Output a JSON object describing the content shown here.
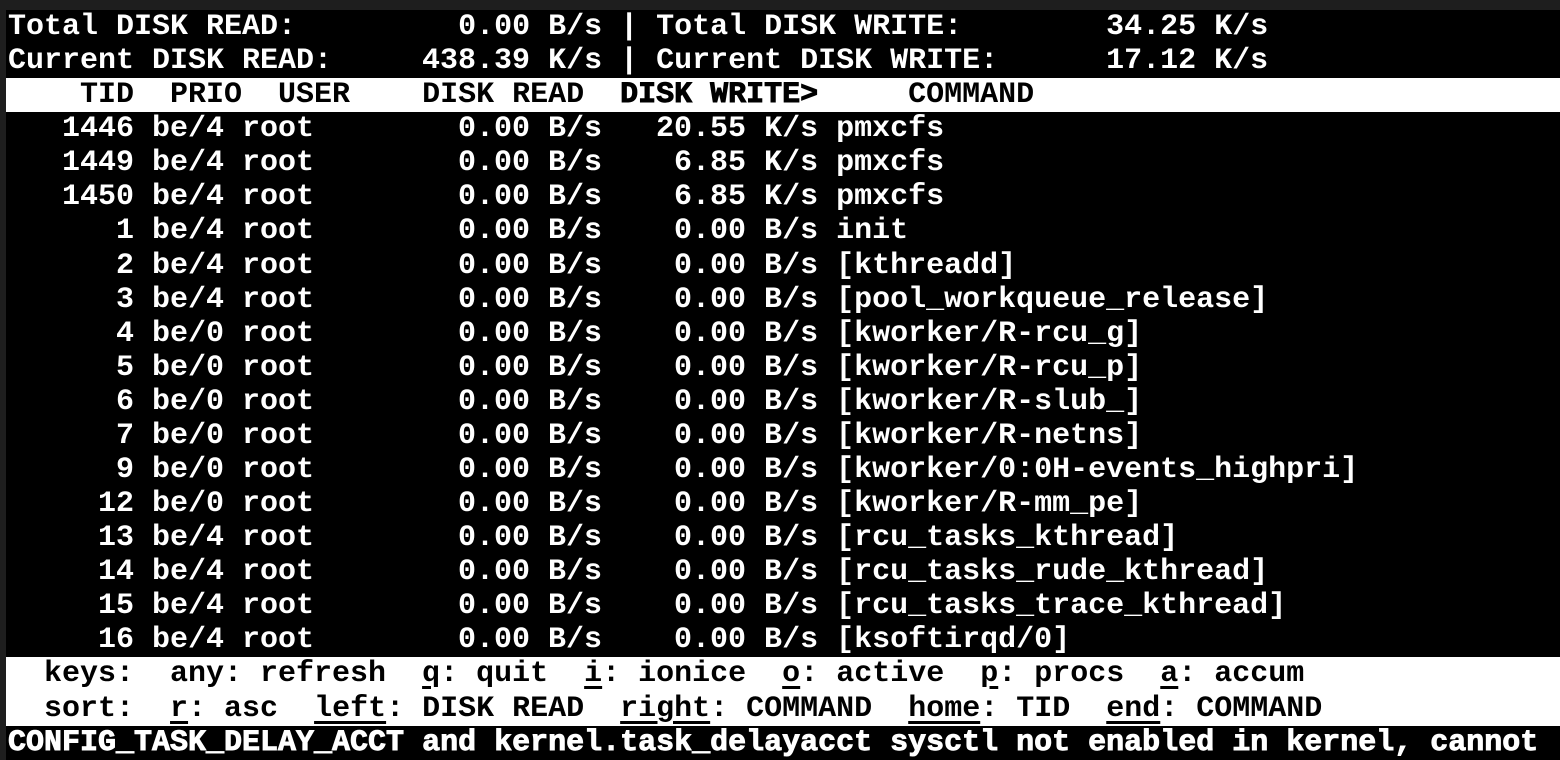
{
  "app": "iotop",
  "terminal": {
    "summary": {
      "total_read_label": "Total DISK READ:",
      "total_read_value": "0.00 B/s",
      "separator": " | ",
      "total_write_label": "Total DISK WRITE:",
      "total_write_value": "34.25 K/s",
      "current_read_label": "Current DISK READ:",
      "current_read_value": "438.39 K/s",
      "current_write_label": "Current DISK WRITE:",
      "current_write_value": "17.12 K/s"
    },
    "table": {
      "columns": [
        "TID",
        "PRIO",
        "USER",
        "DISK READ",
        "DISK WRITE",
        "COMMAND"
      ],
      "sort_column": "DISK WRITE",
      "sort_indicator": ">",
      "header": {
        "pre": "    TID  PRIO  USER    DISK READ  ",
        "sort": "DISK WRITE>",
        "post": "     COMMAND"
      },
      "rows": [
        {
          "tid": "1446",
          "prio": "be/4",
          "user": "root",
          "disk_read": "0.00 B/s",
          "disk_write": "20.55 K/s",
          "command": "pmxcfs"
        },
        {
          "tid": "1449",
          "prio": "be/4",
          "user": "root",
          "disk_read": "0.00 B/s",
          "disk_write": "6.85 K/s",
          "command": "pmxcfs"
        },
        {
          "tid": "1450",
          "prio": "be/4",
          "user": "root",
          "disk_read": "0.00 B/s",
          "disk_write": "6.85 K/s",
          "command": "pmxcfs"
        },
        {
          "tid": "1",
          "prio": "be/4",
          "user": "root",
          "disk_read": "0.00 B/s",
          "disk_write": "0.00 B/s",
          "command": "init"
        },
        {
          "tid": "2",
          "prio": "be/4",
          "user": "root",
          "disk_read": "0.00 B/s",
          "disk_write": "0.00 B/s",
          "command": "[kthreadd]"
        },
        {
          "tid": "3",
          "prio": "be/4",
          "user": "root",
          "disk_read": "0.00 B/s",
          "disk_write": "0.00 B/s",
          "command": "[pool_workqueue_release]"
        },
        {
          "tid": "4",
          "prio": "be/0",
          "user": "root",
          "disk_read": "0.00 B/s",
          "disk_write": "0.00 B/s",
          "command": "[kworker/R-rcu_g]"
        },
        {
          "tid": "5",
          "prio": "be/0",
          "user": "root",
          "disk_read": "0.00 B/s",
          "disk_write": "0.00 B/s",
          "command": "[kworker/R-rcu_p]"
        },
        {
          "tid": "6",
          "prio": "be/0",
          "user": "root",
          "disk_read": "0.00 B/s",
          "disk_write": "0.00 B/s",
          "command": "[kworker/R-slub_]"
        },
        {
          "tid": "7",
          "prio": "be/0",
          "user": "root",
          "disk_read": "0.00 B/s",
          "disk_write": "0.00 B/s",
          "command": "[kworker/R-netns]"
        },
        {
          "tid": "9",
          "prio": "be/0",
          "user": "root",
          "disk_read": "0.00 B/s",
          "disk_write": "0.00 B/s",
          "command": "[kworker/0:0H-events_highpri]"
        },
        {
          "tid": "12",
          "prio": "be/0",
          "user": "root",
          "disk_read": "0.00 B/s",
          "disk_write": "0.00 B/s",
          "command": "[kworker/R-mm_pe]"
        },
        {
          "tid": "13",
          "prio": "be/4",
          "user": "root",
          "disk_read": "0.00 B/s",
          "disk_write": "0.00 B/s",
          "command": "[rcu_tasks_kthread]"
        },
        {
          "tid": "14",
          "prio": "be/4",
          "user": "root",
          "disk_read": "0.00 B/s",
          "disk_write": "0.00 B/s",
          "command": "[rcu_tasks_rude_kthread]"
        },
        {
          "tid": "15",
          "prio": "be/4",
          "user": "root",
          "disk_read": "0.00 B/s",
          "disk_write": "0.00 B/s",
          "command": "[rcu_tasks_trace_kthread]"
        },
        {
          "tid": "16",
          "prio": "be/4",
          "user": "root",
          "disk_read": "0.00 B/s",
          "disk_write": "0.00 B/s",
          "command": "[ksoftirqd/0]"
        }
      ]
    },
    "help": {
      "keys": {
        "s0": "  keys:  any: refresh  ",
        "k1": "q",
        "s1": ": quit  ",
        "k2": "i",
        "s2": ": ionice  ",
        "k3": "o",
        "s3": ": active  ",
        "k4": "p",
        "s4": ": procs  ",
        "k5": "a",
        "s5": ": accum"
      },
      "sort": {
        "s0": "  sort:  ",
        "k1": "r",
        "s1": ": asc  ",
        "k2": "left",
        "s2": ": DISK READ  ",
        "k3": "right",
        "s3": ": COMMAND  ",
        "k4": "home",
        "s4": ": TID  ",
        "k5": "end",
        "s5": ": COMMAND"
      }
    },
    "status_line": "CONFIG_TASK_DELAY_ACCT and kernel.task_delayacct sysctl not enabled in kernel, cannot"
  }
}
